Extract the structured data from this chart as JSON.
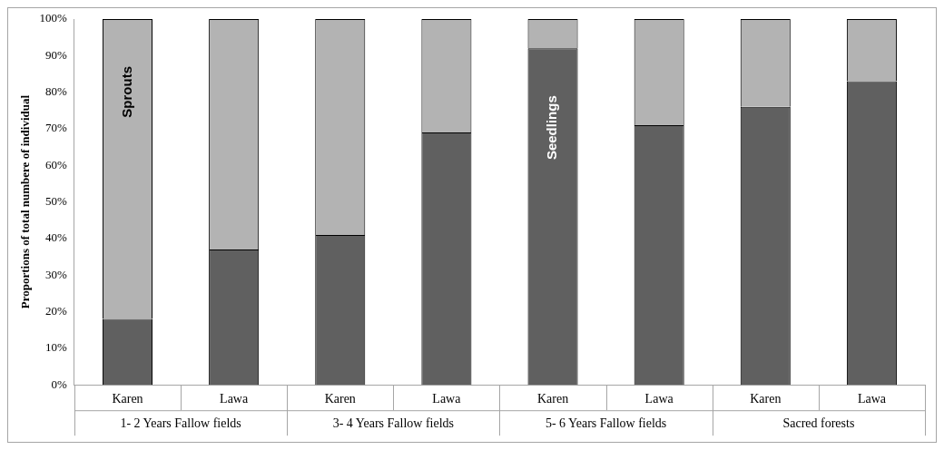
{
  "chart_data": {
    "type": "bar",
    "stacked": true,
    "ylabel": "Proportions of total numbere of individual",
    "categories": [
      "Karen",
      "Lawa",
      "Karen",
      "Lawa",
      "Karen",
      "Lawa",
      "Karen",
      "Lawa"
    ],
    "annotations": [
      "1- 2 Years Fallow fields",
      "3- 4 Years Fallow fields",
      "5- 6 Years Fallow fields",
      "Sacred forests"
    ],
    "series": [
      {
        "name": "Seedlings",
        "color": "#606060",
        "values": [
          18,
          37,
          41,
          69,
          92,
          71,
          76,
          83
        ]
      },
      {
        "name": "Sprouts",
        "color": "#b3b3b3",
        "values": [
          82,
          63,
          59,
          31,
          8,
          29,
          24,
          17
        ]
      }
    ],
    "ylim": [
      0,
      100
    ],
    "yticks": [
      {
        "value": 0,
        "label": "0%"
      },
      {
        "value": 10,
        "label": "10%"
      },
      {
        "value": 20,
        "label": "20%"
      },
      {
        "value": 30,
        "label": "30%"
      },
      {
        "value": 40,
        "label": "40%"
      },
      {
        "value": 50,
        "label": "50%"
      },
      {
        "value": 60,
        "label": "60%"
      },
      {
        "value": 70,
        "label": "70%"
      },
      {
        "value": 80,
        "label": "80%"
      },
      {
        "value": 90,
        "label": "90%"
      },
      {
        "value": 100,
        "label": "100%"
      }
    ],
    "grid": false,
    "legend": false
  }
}
